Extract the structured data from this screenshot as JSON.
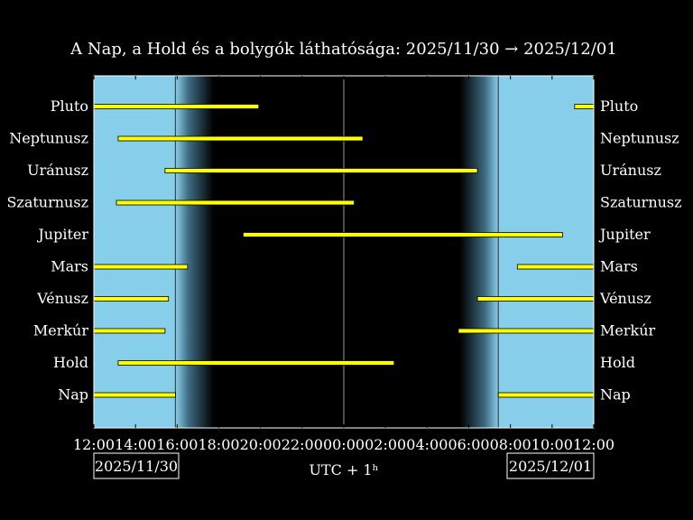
{
  "chart_data": {
    "type": "gantt",
    "title": "A Nap, a Hold és a bolygók láthatósága: 2025/11/30 → 2025/12/01",
    "xlabel": "UTC + 1ʰ",
    "date_start": "2025/11/30",
    "date_end": "2025/12/01",
    "x_ticks": [
      "12:00",
      "14:00",
      "16:00",
      "18:00",
      "20:00",
      "22:00",
      "00:00",
      "02:00",
      "04:00",
      "06:00",
      "08:00",
      "10:00",
      "12:00"
    ],
    "x_range_hours": [
      0,
      24
    ],
    "sunset": "15:55",
    "sunrise": "07:25",
    "twilight_evening_end": "17:45",
    "twilight_morning_start": "05:35",
    "midnight": "00:00",
    "colors": {
      "day": "#87ceeb",
      "night": "#000000",
      "bar": "#ffff00",
      "bar_edge": "#000000",
      "frame": "#ffffff"
    },
    "rows": [
      {
        "name": "Pluto",
        "intervals": [
          [
            "12:00",
            "19:55"
          ],
          [
            "11:05",
            "12:00"
          ]
        ]
      },
      {
        "name": "Neptunusz",
        "intervals": [
          [
            "13:10",
            "00:55"
          ]
        ]
      },
      {
        "name": "Uránusz",
        "intervals": [
          [
            "15:25",
            "06:25"
          ]
        ]
      },
      {
        "name": "Szaturnusz",
        "intervals": [
          [
            "13:05",
            "00:30"
          ]
        ]
      },
      {
        "name": "Jupiter",
        "intervals": [
          [
            "19:10",
            "10:30"
          ]
        ]
      },
      {
        "name": "Mars",
        "intervals": [
          [
            "12:00",
            "16:30"
          ],
          [
            "08:20",
            "12:00"
          ]
        ]
      },
      {
        "name": "Vénusz",
        "intervals": [
          [
            "12:00",
            "15:35"
          ],
          [
            "06:25",
            "12:00"
          ]
        ]
      },
      {
        "name": "Merkúr",
        "intervals": [
          [
            "12:00",
            "15:25"
          ],
          [
            "05:30",
            "12:00"
          ]
        ]
      },
      {
        "name": "Hold",
        "intervals": [
          [
            "13:10",
            "02:25"
          ]
        ]
      },
      {
        "name": "Nap",
        "intervals": [
          [
            "12:00",
            "15:55"
          ],
          [
            "07:25",
            "12:00"
          ]
        ]
      }
    ]
  }
}
